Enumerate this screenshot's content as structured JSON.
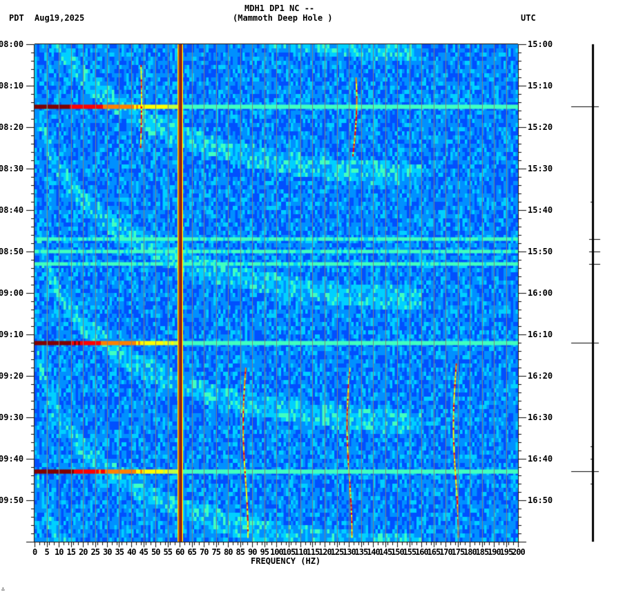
{
  "header": {
    "station_line": "MDH1 DP1 NC --",
    "station_name": "(Mammoth Deep Hole )",
    "left_tz": "PDT",
    "date": "Aug19,2025",
    "right_tz": "UTC"
  },
  "footer": {
    "mark": "∴"
  },
  "colors": {
    "background": "#ffffff",
    "axis": "#000000",
    "grid": "#808080",
    "colormap": [
      "#0000c8",
      "#0050ff",
      "#0090ff",
      "#00d0ff",
      "#40ffc0",
      "#c0ff40",
      "#ffff00",
      "#ff8000",
      "#ff0000",
      "#800000"
    ]
  },
  "chart_data": {
    "type": "heatmap",
    "title": "MDH1 DP1 NC -- (Mammoth Deep Hole )",
    "xlabel": "FREQUENCY (HZ)",
    "ylabel_left": "PDT",
    "ylabel_right": "UTC",
    "xlim": [
      0,
      200
    ],
    "x_ticks": [
      0,
      5,
      10,
      15,
      20,
      25,
      30,
      35,
      40,
      45,
      50,
      55,
      60,
      65,
      70,
      75,
      80,
      85,
      90,
      95,
      100,
      105,
      110,
      115,
      120,
      125,
      130,
      135,
      140,
      145,
      150,
      155,
      160,
      165,
      170,
      175,
      180,
      185,
      190,
      195,
      200
    ],
    "y_ticks_left": [
      "08:00",
      "08:10",
      "08:20",
      "08:30",
      "08:40",
      "08:50",
      "09:00",
      "09:10",
      "09:20",
      "09:30",
      "09:40",
      "09:50"
    ],
    "y_ticks_right": [
      "15:00",
      "15:10",
      "15:20",
      "15:30",
      "15:40",
      "15:50",
      "16:00",
      "16:10",
      "16:20",
      "16:30",
      "16:40",
      "16:50"
    ],
    "time_span_minutes": 120,
    "grid": "vertical lines every 5 Hz",
    "background_level": "blue/cyan noise",
    "persistent_lines_hz": [
      {
        "freq": 60,
        "level": "max",
        "note": "power-line hum, red/dark-red across full time span"
      },
      {
        "freq": 5,
        "level": "medium",
        "note": "faint cyan line"
      }
    ],
    "broadband_events": [
      {
        "time": "08:15",
        "utc": "15:15",
        "strength": "strong",
        "max_freq_hz": 60
      },
      {
        "time": "08:47",
        "utc": "15:47",
        "strength": "weak"
      },
      {
        "time": "08:50",
        "utc": "15:50",
        "strength": "weak"
      },
      {
        "time": "08:53",
        "utc": "15:53",
        "strength": "weak"
      },
      {
        "time": "09:12",
        "utc": "16:12",
        "strength": "strong",
        "max_freq_hz": 60
      },
      {
        "time": "09:43",
        "utc": "16:43",
        "strength": "strong",
        "max_freq_hz": 60
      }
    ],
    "wandering_tones": [
      {
        "start": "09:18",
        "end": "09:59",
        "freq_range_hz": [
          86,
          88
        ]
      },
      {
        "start": "09:18",
        "end": "09:59",
        "freq_range_hz": [
          129,
          131
        ]
      },
      {
        "start": "09:17",
        "end": "09:59",
        "freq_range_hz": [
          173,
          175
        ]
      },
      {
        "start": "08:08",
        "end": "08:27",
        "freq_range_hz": [
          130,
          133
        ]
      },
      {
        "start": "08:05",
        "end": "08:25",
        "freq_range_hz": [
          43,
          44
        ]
      }
    ],
    "trace_marks_right": [
      {
        "time": "15:15",
        "size": "large"
      },
      {
        "time": "15:38",
        "size": "tiny"
      },
      {
        "time": "15:47",
        "size": "small"
      },
      {
        "time": "15:50",
        "size": "small"
      },
      {
        "time": "15:53",
        "size": "small"
      },
      {
        "time": "16:12",
        "size": "large"
      },
      {
        "time": "16:37",
        "size": "tiny"
      },
      {
        "time": "16:40",
        "size": "tiny"
      },
      {
        "time": "16:43",
        "size": "large"
      },
      {
        "time": "16:46",
        "size": "tiny"
      }
    ]
  }
}
